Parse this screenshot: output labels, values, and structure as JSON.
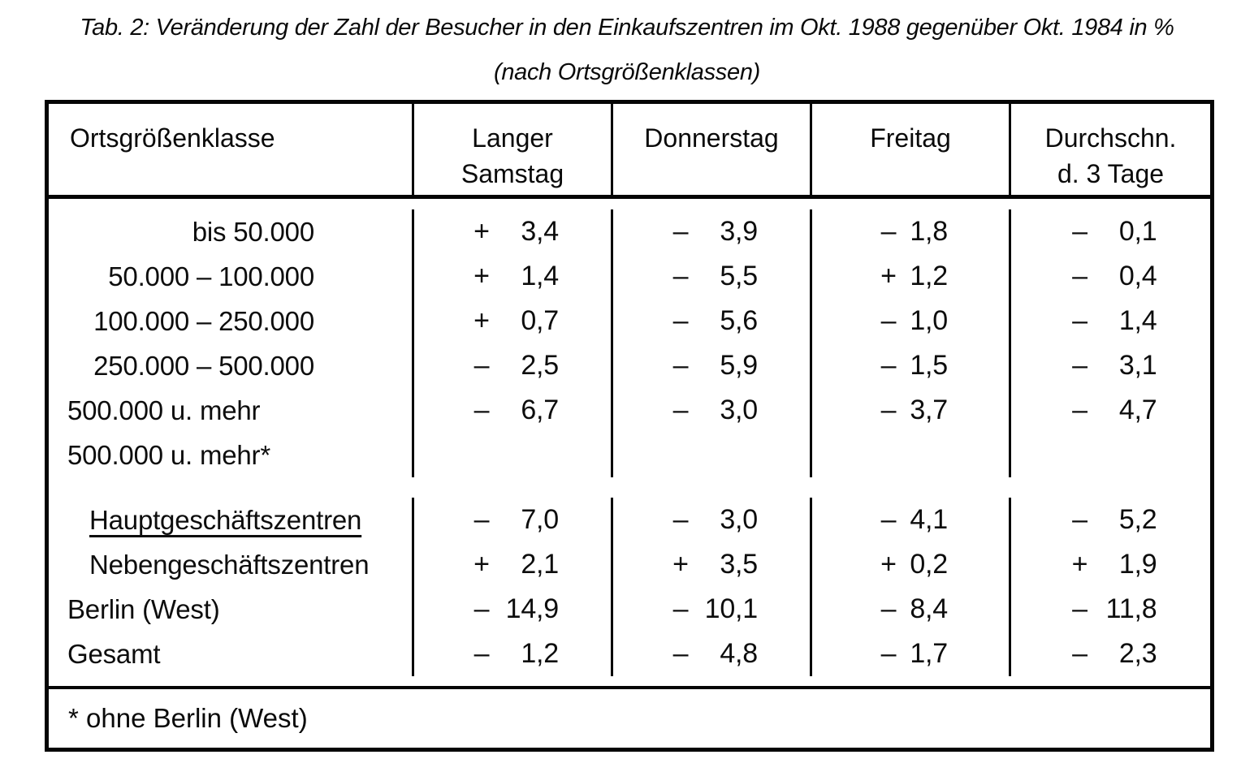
{
  "title": {
    "line1": "Tab. 2: Veränderung der Zahl der Besucher in den Einkaufszentren im Okt. 1988 gegenüber Okt. 1984 in %",
    "line2": "(nach Ortsgrößenklassen)"
  },
  "table": {
    "headers": {
      "col1": "Ortsgrößenklasse",
      "col2_line1": "Langer",
      "col2_line2": "Samstag",
      "col3": "Donnerstag",
      "col4": "Freitag",
      "col5_line1": "Durchschn.",
      "col5_line2": "d. 3 Tage"
    },
    "rows": [
      {
        "label": "bis 50.000",
        "s1": "+",
        "v1": "3,4",
        "s2": "–",
        "v2": "3,9",
        "s3": "–",
        "v3": "1,8",
        "s4": "–",
        "v4": "0,1"
      },
      {
        "label": "50.000 – 100.000",
        "s1": "+",
        "v1": "1,4",
        "s2": "–",
        "v2": "5,5",
        "s3": "+",
        "v3": "1,2",
        "s4": "–",
        "v4": "0,4"
      },
      {
        "label": "100.000 – 250.000",
        "s1": "+",
        "v1": "0,7",
        "s2": "–",
        "v2": "5,6",
        "s3": "–",
        "v3": "1,0",
        "s4": "–",
        "v4": "1,4"
      },
      {
        "label": "250.000 – 500.000",
        "s1": "–",
        "v1": "2,5",
        "s2": "–",
        "v2": "5,9",
        "s3": "–",
        "v3": "1,5",
        "s4": "–",
        "v4": "3,1"
      },
      {
        "label": "500.000 u. mehr",
        "s1": "–",
        "v1": "6,7",
        "s2": "–",
        "v2": "3,0",
        "s3": "–",
        "v3": "3,7",
        "s4": "–",
        "v4": "4,7"
      },
      {
        "label": "500.000 u. mehr*",
        "s1": "",
        "v1": "",
        "s2": "",
        "v2": "",
        "s3": "",
        "v3": "",
        "s4": "",
        "v4": ""
      },
      {
        "label": "Hauptgeschäftszentren",
        "s1": "–",
        "v1": "7,0",
        "s2": "–",
        "v2": "3,0",
        "s3": "–",
        "v3": "4,1",
        "s4": "–",
        "v4": "5,2"
      },
      {
        "label": "Nebengeschäftszentren",
        "s1": "+",
        "v1": "2,1",
        "s2": "+",
        "v2": "3,5",
        "s3": "+",
        "v3": "0,2",
        "s4": "+",
        "v4": "1,9"
      },
      {
        "label": "Berlin (West)",
        "s1": "–",
        "v1": "14,9",
        "s2": "–",
        "v2": "10,1",
        "s3": "–",
        "v3": "8,4",
        "s4": "–",
        "v4": "11,8"
      },
      {
        "label": "Gesamt",
        "s1": "–",
        "v1": "1,2",
        "s2": "–",
        "v2": "4,8",
        "s3": "–",
        "v3": "1,7",
        "s4": "–",
        "v4": "2,3"
      }
    ],
    "footnote": "* ohne Berlin (West)"
  }
}
